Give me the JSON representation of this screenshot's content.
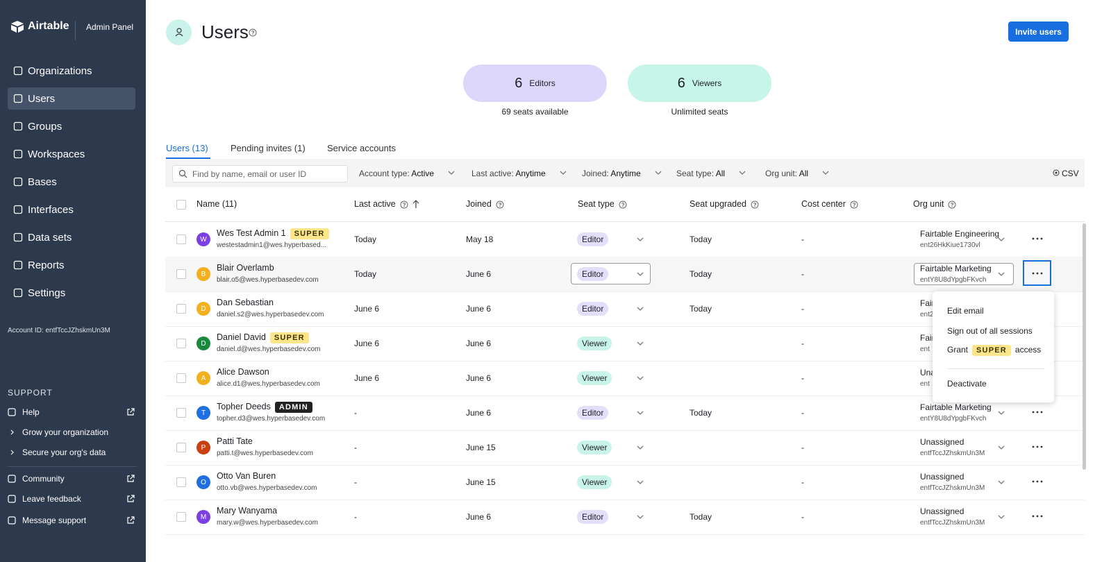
{
  "sidebar": {
    "brand": "Airtable",
    "panel": "Admin Panel",
    "nav": [
      "Organizations",
      "Users",
      "Groups",
      "Workspaces",
      "Bases",
      "Interfaces",
      "Data sets",
      "Reports",
      "Settings"
    ],
    "active": 1,
    "account_id": "Account ID: entfTccJZhskmUn3M",
    "support_title": "SUPPORT",
    "support": [
      {
        "label": "Help",
        "external": true,
        "indent": false
      },
      {
        "label": "Grow your organization",
        "external": false,
        "indent": true
      },
      {
        "label": "Secure your org's data",
        "external": false,
        "indent": true
      },
      {
        "label": "Community",
        "external": true,
        "indent": false
      },
      {
        "label": "Leave feedback",
        "external": true,
        "indent": false
      },
      {
        "label": "Message support",
        "external": true,
        "indent": false
      }
    ]
  },
  "header": {
    "title": "Users",
    "button": "Invite users"
  },
  "stats": [
    {
      "count": 6,
      "label": "Editors",
      "note": "69 seats available",
      "color": "#ddd6fb"
    },
    {
      "count": 6,
      "label": "Viewers",
      "note": "Unlimited seats",
      "color": "#c7f5ea"
    }
  ],
  "tabs": [
    "Users (13)",
    "Pending invites (1)",
    "Service accounts"
  ],
  "active_tab": 0,
  "filters": {
    "search": "Find by name, email or user ID",
    "items": [
      {
        "label": "Account type:",
        "value": "Active"
      },
      {
        "label": "Last active:",
        "value": "Anytime"
      },
      {
        "label": "Joined:",
        "value": "Anytime"
      },
      {
        "label": "Seat type:",
        "value": "All"
      },
      {
        "label": "Org unit:",
        "value": "All"
      }
    ],
    "export": "CSV"
  },
  "table": {
    "columns": [
      "Name (11)",
      "Last active",
      "Joined",
      "Seat type",
      "Seat upgraded",
      "Cost center",
      "Org unit"
    ],
    "rows": [
      {
        "avatar": "W",
        "avatar_color": "#7b3fe4",
        "name": "Wes Test Admin 1",
        "badge": "SUPER",
        "email": "westestadmin1@wes.hyperbased...",
        "last_active": "Today",
        "joined": "May 18",
        "seat": "Editor",
        "seat_upgraded": "Today",
        "cost_center": "-",
        "org_unit": "Fairtable Engineering",
        "org_id": "ent26HkKiue1730vl"
      },
      {
        "avatar": "B",
        "avatar_color": "#f2b01e",
        "name": "Blair Overlamb",
        "badge": null,
        "email": "blair.o5@wes.hyperbasedev.com",
        "last_active": "Today",
        "joined": "June 6",
        "seat": "Editor",
        "seat_upgraded": "Today",
        "cost_center": "-",
        "org_unit": "Fairtable Marketing",
        "org_id": "entY8U8dYpgbFKvch"
      },
      {
        "avatar": "D",
        "avatar_color": "#f2b01e",
        "name": "Dan Sebastian",
        "badge": null,
        "email": "daniel.s2@wes.hyperbasedev.com",
        "last_active": "June 6",
        "joined": "June 6",
        "seat": "Editor",
        "seat_upgraded": "Today",
        "cost_center": "-",
        "org_unit": "Fair",
        "org_id": "ent2"
      },
      {
        "avatar": "D",
        "avatar_color": "#178a3c",
        "name": "Daniel David",
        "badge": "SUPER",
        "email": "daniel.d@wes.hyperbasedev.com",
        "last_active": "June 6",
        "joined": "June 6",
        "seat": "Viewer",
        "seat_upgraded": null,
        "cost_center": "-",
        "org_unit": "Fair",
        "org_id": "ent"
      },
      {
        "avatar": "A",
        "avatar_color": "#f2b01e",
        "name": "Alice Dawson",
        "badge": null,
        "email": "alice.d1@wes.hyperbasedev.com",
        "last_active": "June 6",
        "joined": "June 6",
        "seat": "Viewer",
        "seat_upgraded": null,
        "cost_center": "-",
        "org_unit": "Una",
        "org_id": "ent"
      },
      {
        "avatar": "T",
        "avatar_color": "#1f6fe0",
        "name": "Topher Deeds",
        "badge": "ADMIN",
        "email": "topher.d3@wes.hyperbasedev.com",
        "last_active": "-",
        "joined": "June 6",
        "seat": "Editor",
        "seat_upgraded": "Today",
        "cost_center": "-",
        "org_unit": "Fairtable Marketing",
        "org_id": "entY8U8dYpgbFKvch"
      },
      {
        "avatar": "P",
        "avatar_color": "#c8410f",
        "name": "Patti Tate",
        "badge": null,
        "email": "patti.t@wes.hyperbasedev.com",
        "last_active": "-",
        "joined": "June 15",
        "seat": "Viewer",
        "seat_upgraded": null,
        "cost_center": "-",
        "org_unit": "Unassigned",
        "org_id": "entfTccJZhskmUn3M"
      },
      {
        "avatar": "O",
        "avatar_color": "#1f6fe0",
        "name": "Otto Van Buren",
        "badge": null,
        "email": "otto.vb@wes.hyperbasedev.com",
        "last_active": "-",
        "joined": "June 15",
        "seat": "Viewer",
        "seat_upgraded": null,
        "cost_center": "-",
        "org_unit": "Unassigned",
        "org_id": "entfTccJZhskmUn3M"
      },
      {
        "avatar": "M",
        "avatar_color": "#7b3fe4",
        "name": "Mary Wanyama",
        "badge": null,
        "email": "mary.w@wes.hyperbasedev.com",
        "last_active": "-",
        "joined": "June 6",
        "seat": "Editor",
        "seat_upgraded": "Today",
        "cost_center": "-",
        "org_unit": "Unassigned",
        "org_id": "entfTccJZhskmUn3M"
      }
    ],
    "selected_row": 1
  },
  "menu": {
    "items": [
      "Edit email",
      "Sign out of all sessions"
    ],
    "grant": {
      "before": "Grant",
      "badge": "SUPER",
      "after": "access"
    },
    "danger": "Deactivate"
  }
}
